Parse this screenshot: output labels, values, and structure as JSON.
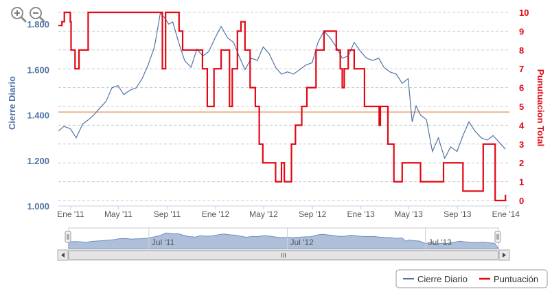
{
  "toolbar": {
    "zoom_in_icon": "zoom-in-icon",
    "zoom_out_icon": "zoom-out-icon"
  },
  "chart_data": {
    "type": "line",
    "title": "",
    "x_tick_labels": [
      "Ene '11",
      "May '11",
      "Sep '11",
      "Ene '12",
      "May '12",
      "Sep '12",
      "Ene '13",
      "May '13",
      "Sep '13",
      "Ene '14"
    ],
    "x_range": [
      "2010-12-01",
      "2014-01-10"
    ],
    "ylabel_left": "Cierre Diario",
    "ylabel_right": "Punutuacion Total",
    "y_left_ticks": [
      "1.000",
      "1.200",
      "1.400",
      "1.600",
      "1.800"
    ],
    "y_left_range": [
      1000,
      1870
    ],
    "y_right_ticks": [
      "0",
      "1",
      "2",
      "3",
      "4",
      "5",
      "6",
      "7",
      "8",
      "9",
      "10"
    ],
    "y_right_range": [
      0,
      10
    ],
    "grid": "horizontal dashed",
    "plot_line": {
      "value": 4.7,
      "axis": "right",
      "color": "#f0b48c"
    },
    "series": [
      {
        "name": "Cierre Diario",
        "axis": "left",
        "color": "#4e73a6",
        "x": [
          "2010-12-01",
          "2010-12-15",
          "2010-12-31",
          "2011-01-15",
          "2011-01-31",
          "2011-02-15",
          "2011-02-28",
          "2011-03-15",
          "2011-03-31",
          "2011-04-15",
          "2011-04-30",
          "2011-05-15",
          "2011-05-31",
          "2011-06-15",
          "2011-06-30",
          "2011-07-15",
          "2011-07-31",
          "2011-08-05",
          "2011-08-15",
          "2011-08-25",
          "2011-09-05",
          "2011-09-15",
          "2011-09-30",
          "2011-10-15",
          "2011-10-31",
          "2011-11-15",
          "2011-11-30",
          "2011-12-15",
          "2011-12-31",
          "2012-01-15",
          "2012-01-31",
          "2012-02-15",
          "2012-02-29",
          "2012-03-15",
          "2012-03-31",
          "2012-04-15",
          "2012-04-30",
          "2012-05-15",
          "2012-05-31",
          "2012-06-15",
          "2012-06-30",
          "2012-07-15",
          "2012-07-31",
          "2012-08-15",
          "2012-08-31",
          "2012-09-15",
          "2012-09-30",
          "2012-10-15",
          "2012-10-31",
          "2012-11-15",
          "2012-11-30",
          "2012-12-15",
          "2012-12-31",
          "2013-01-15",
          "2013-01-31",
          "2013-02-15",
          "2013-02-28",
          "2013-03-15",
          "2013-03-31",
          "2013-04-15",
          "2013-04-30",
          "2013-05-10",
          "2013-05-20",
          "2013-05-31",
          "2013-06-15",
          "2013-06-30",
          "2013-07-15",
          "2013-07-31",
          "2013-08-15",
          "2013-08-31",
          "2013-09-15",
          "2013-09-30",
          "2013-10-15",
          "2013-10-31",
          "2013-11-15",
          "2013-11-30",
          "2013-12-15",
          "2013-12-31"
        ],
        "values": [
          1330,
          1350,
          1340,
          1300,
          1360,
          1380,
          1400,
          1430,
          1460,
          1520,
          1530,
          1490,
          1510,
          1520,
          1560,
          1620,
          1700,
          1750,
          1850,
          1830,
          1800,
          1810,
          1720,
          1640,
          1610,
          1690,
          1660,
          1680,
          1740,
          1790,
          1740,
          1720,
          1660,
          1600,
          1650,
          1640,
          1700,
          1670,
          1610,
          1580,
          1590,
          1580,
          1600,
          1620,
          1630,
          1720,
          1770,
          1740,
          1700,
          1650,
          1660,
          1720,
          1680,
          1650,
          1640,
          1650,
          1610,
          1590,
          1580,
          1540,
          1560,
          1370,
          1440,
          1400,
          1380,
          1240,
          1300,
          1210,
          1260,
          1240,
          1310,
          1370,
          1330,
          1300,
          1290,
          1310,
          1280,
          1250
        ]
      },
      {
        "name": "Puntuación",
        "axis": "right",
        "color": "#e30613",
        "x": [
          "2010-12-01",
          "2010-12-10",
          "2010-12-16",
          "2010-12-31",
          "2011-01-02",
          "2011-01-12",
          "2011-01-22",
          "2011-02-14",
          "2011-03-05",
          "2011-04-15",
          "2011-05-15",
          "2011-06-15",
          "2011-07-15",
          "2011-08-01",
          "2011-08-20",
          "2011-08-28",
          "2011-09-15",
          "2011-10-01",
          "2011-10-10",
          "2011-11-01",
          "2011-11-15",
          "2011-11-29",
          "2011-12-11",
          "2011-12-28",
          "2012-01-15",
          "2012-02-05",
          "2012-02-12",
          "2012-02-25",
          "2012-03-05",
          "2012-03-15",
          "2012-03-28",
          "2012-04-10",
          "2012-04-20",
          "2012-04-29",
          "2012-05-31",
          "2012-06-15",
          "2012-06-22",
          "2012-07-01",
          "2012-07-10",
          "2012-07-20",
          "2012-08-05",
          "2012-08-10",
          "2012-08-18",
          "2012-09-10",
          "2012-09-30",
          "2012-10-15",
          "2012-10-31",
          "2012-11-10",
          "2012-11-15",
          "2012-11-20",
          "2012-11-30",
          "2012-12-15",
          "2012-12-31",
          "2013-01-10",
          "2013-02-01",
          "2013-02-16",
          "2013-02-19",
          "2013-03-01",
          "2013-03-10",
          "2013-03-25",
          "2013-04-15",
          "2013-04-30",
          "2013-05-15",
          "2013-05-31",
          "2013-06-10",
          "2013-06-26",
          "2013-07-10",
          "2013-07-28",
          "2013-08-15",
          "2013-09-15",
          "2013-10-06",
          "2013-10-28",
          "2013-11-05",
          "2013-11-10",
          "2013-12-05",
          "2013-12-08",
          "2013-12-31"
        ],
        "values": [
          9.3,
          9.5,
          10,
          9.5,
          8,
          7,
          8,
          10,
          10,
          10,
          10,
          10,
          10,
          10,
          7,
          10,
          10,
          9,
          8,
          8,
          8,
          7,
          5,
          7,
          8,
          5,
          7,
          9,
          9.5,
          8,
          6,
          5,
          3,
          2,
          1,
          2,
          1,
          1,
          3,
          4,
          5,
          5,
          6,
          8,
          9,
          9,
          8,
          7,
          6,
          7,
          8,
          7,
          7,
          5,
          5,
          4,
          5,
          5,
          3,
          1,
          2,
          2,
          2,
          1,
          1,
          1,
          1,
          2,
          2,
          0.5,
          0.5,
          0.5,
          3,
          3,
          0,
          0,
          0.3
        ]
      }
    ],
    "legend": {
      "placement": "bottom-right",
      "items": [
        "Cierre Diario",
        "Puntuación"
      ]
    },
    "navigator": {
      "labels": [
        "Jul '11",
        "Jul '12",
        "Jul '13"
      ],
      "scrollbar_grip": "III"
    }
  }
}
